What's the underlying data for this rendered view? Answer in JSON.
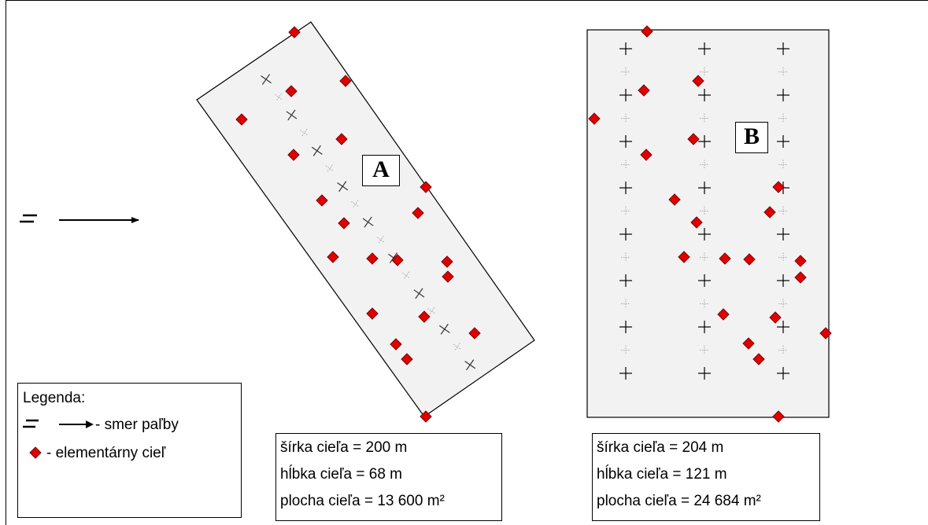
{
  "target_a": {
    "label": "A"
  },
  "target_b": {
    "label": "B"
  },
  "info_a": {
    "width_text": "šírka cieľa = 200 m",
    "depth_text": "hĺbka cieľa = 68 m",
    "area_text": "plocha cieľa = 13 600 m²"
  },
  "info_b": {
    "width_text": "šírka cieľa = 204 m",
    "depth_text": "hĺbka cieľa = 121 m",
    "area_text": "plocha cieľa = 24 684 m²"
  },
  "legend": {
    "title": "Legenda:",
    "fire_direction_label": "- smer paľby",
    "target_label": "- elementárny cieľ"
  },
  "colors": {
    "target_marker": "#e00000",
    "area_fill": "#f2f2f2",
    "outline": "#000000"
  }
}
